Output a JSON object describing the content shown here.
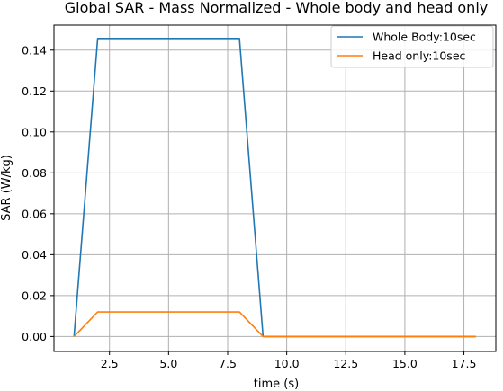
{
  "chart_data": {
    "type": "line",
    "title": "Global SAR  - Mass Normalized -  Whole body and head only",
    "xlabel": "time (s)",
    "ylabel": "SAR (W/kg)",
    "xlim": [
      0.15,
      18.85
    ],
    "ylim": [
      -0.0073,
      0.1522
    ],
    "xticks": [
      2.5,
      5.0,
      7.5,
      10.0,
      12.5,
      15.0,
      17.5
    ],
    "xtick_labels": [
      "2.5",
      "5.0",
      "7.5",
      "10.0",
      "12.5",
      "15.0",
      "17.5"
    ],
    "yticks": [
      0.0,
      0.02,
      0.04,
      0.06,
      0.08,
      0.1,
      0.12,
      0.14
    ],
    "ytick_labels": [
      "0.00",
      "0.02",
      "0.04",
      "0.06",
      "0.08",
      "0.10",
      "0.12",
      "0.14"
    ],
    "grid": true,
    "legend_position": "upper right",
    "series": [
      {
        "name": "Whole Body:10sec",
        "color": "#1f77b4",
        "x": [
          1,
          2,
          3,
          4,
          5,
          6,
          7,
          8,
          9,
          10,
          11,
          12,
          13,
          14,
          15,
          16,
          17,
          18
        ],
        "y": [
          0.0,
          0.1457,
          0.1457,
          0.1457,
          0.1457,
          0.1457,
          0.1457,
          0.1457,
          0.0,
          0.0,
          0.0,
          0.0,
          0.0,
          0.0,
          0.0,
          0.0,
          0.0,
          0.0
        ]
      },
      {
        "name": "Head only:10sec",
        "color": "#ff7f0e",
        "x": [
          1,
          2,
          3,
          4,
          5,
          6,
          7,
          8,
          9,
          10,
          11,
          12,
          13,
          14,
          15,
          16,
          17,
          18
        ],
        "y": [
          0.0,
          0.012,
          0.012,
          0.012,
          0.012,
          0.012,
          0.012,
          0.012,
          0.0,
          0.0,
          0.0,
          0.0,
          0.0,
          0.0,
          0.0,
          0.0,
          0.0,
          0.0
        ]
      }
    ]
  }
}
